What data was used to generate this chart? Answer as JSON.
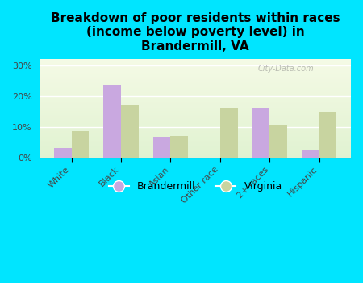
{
  "title": "Breakdown of poor residents within races\n(income below poverty level) in\nBrandermill, VA",
  "categories": [
    "White",
    "Black",
    "Asian",
    "Other race",
    "2+ races",
    "Hispanic"
  ],
  "brandermill_values": [
    3.0,
    23.5,
    6.5,
    0.0,
    16.0,
    2.5
  ],
  "virginia_values": [
    8.5,
    17.0,
    7.0,
    16.0,
    10.5,
    14.5
  ],
  "brandermill_color": "#c9a8e0",
  "virginia_color": "#c8d4a0",
  "background_outer": "#00e5ff",
  "ylim": [
    0,
    32
  ],
  "yticks": [
    0,
    10,
    20,
    30
  ],
  "ytick_labels": [
    "0%",
    "10%",
    "20%",
    "30%"
  ],
  "bar_width": 0.35,
  "title_fontsize": 11,
  "tick_fontsize": 8,
  "legend_fontsize": 9
}
